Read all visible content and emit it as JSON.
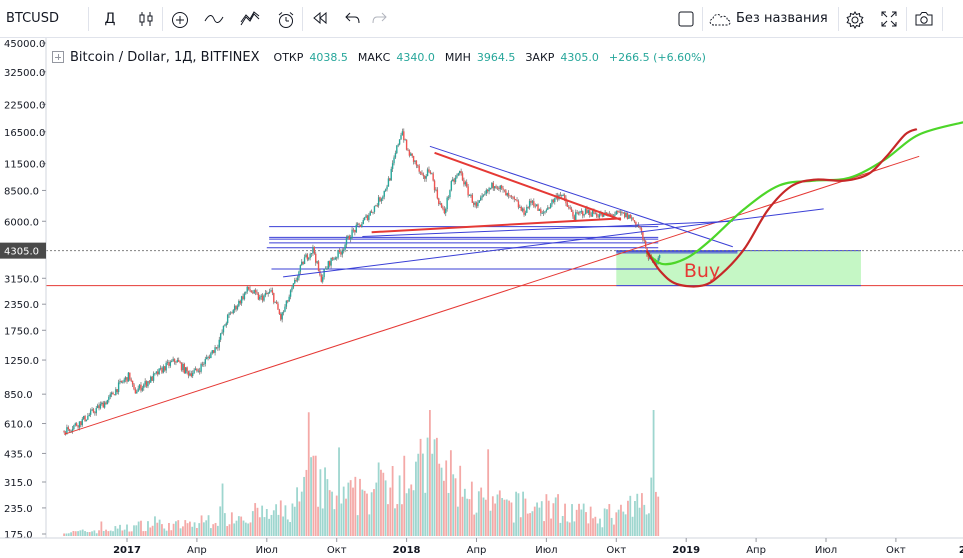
{
  "toolbar": {
    "symbol": "BTCUSD",
    "interval": "Д",
    "layout_name": "Без названия",
    "icons": [
      "candles-icon",
      "add-indicator-icon",
      "compare-icon",
      "indicators-icon",
      "alert-icon",
      "replay-icon",
      "undo-icon",
      "redo-icon",
      "checkbox-icon",
      "cloud-icon",
      "settings-icon",
      "fullscreen-icon",
      "camera-icon"
    ]
  },
  "legend": {
    "title": "Bitcoin / Dollar, 1Д, BITFINEX",
    "open_label": "ОТКР",
    "open": "4038.5",
    "high_label": "МАКС",
    "high": "4340.0",
    "low_label": "МИН",
    "low": "3964.5",
    "close_label": "ЗАКР",
    "close": "4305.0",
    "change": "+266.5 (+6.60%)"
  },
  "chart_data": {
    "type": "candlestick",
    "scale": "log",
    "symbol": "BTCUSD",
    "timeframe": "1D",
    "exchange": "BITFINEX",
    "price_axis_ticks": [
      45000,
      32500,
      22500,
      16500,
      11500,
      8500,
      6000,
      4305,
      3150,
      2350,
      1750,
      1250,
      850,
      610,
      435,
      315,
      235,
      175
    ],
    "price_axis_labels": [
      "45000.0",
      "32500.0",
      "22500.0",
      "16500.0",
      "11500.0",
      "8500.0",
      "6000.0",
      "4305.0",
      "3150.0",
      "2350.0",
      "1750.0",
      "1250.0",
      "850.0",
      "610.0",
      "435.0",
      "315.0",
      "235.0",
      "175.0"
    ],
    "current_price": 4305.0,
    "current_price_label": "4305.0",
    "time_axis": [
      {
        "label": "2017",
        "t": 0,
        "bold": true
      },
      {
        "label": "Апр",
        "t": 3
      },
      {
        "label": "Июл",
        "t": 6
      },
      {
        "label": "Окт",
        "t": 9
      },
      {
        "label": "2018",
        "t": 12,
        "bold": true
      },
      {
        "label": "Апр",
        "t": 15
      },
      {
        "label": "Июл",
        "t": 18
      },
      {
        "label": "Окт",
        "t": 21
      },
      {
        "label": "2019",
        "t": 24,
        "bold": true
      },
      {
        "label": "Апр",
        "t": 27
      },
      {
        "label": "Июл",
        "t": 30
      },
      {
        "label": "Окт",
        "t": 33
      },
      {
        "label": "20",
        "t": 36,
        "bold": true
      }
    ],
    "price_path": [
      [
        -2.7,
        560
      ],
      [
        -2.0,
        620
      ],
      [
        -1.3,
        720
      ],
      [
        -0.8,
        800
      ],
      [
        -0.3,
        950
      ],
      [
        0.1,
        1050
      ],
      [
        0.3,
        870
      ],
      [
        1.0,
        1000
      ],
      [
        1.6,
        1150
      ],
      [
        2.1,
        1250
      ],
      [
        2.6,
        1080
      ],
      [
        3.0,
        1100
      ],
      [
        3.5,
        1300
      ],
      [
        3.9,
        1500
      ],
      [
        4.3,
        2000
      ],
      [
        4.8,
        2400
      ],
      [
        5.2,
        2800
      ],
      [
        5.7,
        2500
      ],
      [
        6.2,
        2700
      ],
      [
        6.6,
        2000
      ],
      [
        7.1,
        2800
      ],
      [
        7.6,
        3900
      ],
      [
        8.0,
        4400
      ],
      [
        8.3,
        3100
      ],
      [
        8.7,
        3800
      ],
      [
        9.2,
        4300
      ],
      [
        9.6,
        5200
      ],
      [
        10.1,
        5900
      ],
      [
        10.6,
        7000
      ],
      [
        11.0,
        8200
      ],
      [
        11.3,
        10000
      ],
      [
        11.6,
        14000
      ],
      [
        11.8,
        17000
      ],
      [
        12.0,
        13500
      ],
      [
        12.4,
        11500
      ],
      [
        12.7,
        9500
      ],
      [
        13.0,
        11000
      ],
      [
        13.3,
        8000
      ],
      [
        13.6,
        6500
      ],
      [
        13.9,
        9000
      ],
      [
        14.3,
        10500
      ],
      [
        14.6,
        8500
      ],
      [
        15.0,
        7000
      ],
      [
        15.4,
        8200
      ],
      [
        15.8,
        9300
      ],
      [
        16.3,
        8000
      ],
      [
        16.7,
        7400
      ],
      [
        17.0,
        6600
      ],
      [
        17.4,
        7600
      ],
      [
        17.8,
        6400
      ],
      [
        18.2,
        7400
      ],
      [
        18.6,
        8300
      ],
      [
        18.9,
        7100
      ],
      [
        19.2,
        6300
      ],
      [
        19.6,
        6700
      ],
      [
        20.0,
        6600
      ],
      [
        20.4,
        6400
      ],
      [
        20.8,
        6450
      ],
      [
        21.2,
        6500
      ],
      [
        21.6,
        6300
      ],
      [
        22.0,
        5600
      ],
      [
        22.3,
        4200
      ],
      [
        22.6,
        3700
      ],
      [
        22.8,
        4038.5
      ],
      [
        22.9,
        4305
      ]
    ],
    "volume_path": [
      [
        -2.7,
        0.03
      ],
      [
        -1.5,
        0.05
      ],
      [
        0.0,
        0.08
      ],
      [
        1.0,
        0.12
      ],
      [
        2.0,
        0.1
      ],
      [
        3.0,
        0.12
      ],
      [
        4.0,
        0.2
      ],
      [
        5.0,
        0.22
      ],
      [
        6.0,
        0.2
      ],
      [
        7.0,
        0.25
      ],
      [
        8.0,
        0.55
      ],
      [
        9.0,
        0.35
      ],
      [
        10.0,
        0.4
      ],
      [
        11.0,
        0.5
      ],
      [
        11.8,
        0.7
      ],
      [
        12.5,
        0.6
      ],
      [
        13.0,
        0.75
      ],
      [
        14.0,
        0.55
      ],
      [
        15.0,
        0.35
      ],
      [
        16.0,
        0.3
      ],
      [
        17.0,
        0.28
      ],
      [
        18.0,
        0.3
      ],
      [
        19.0,
        0.25
      ],
      [
        20.0,
        0.18
      ],
      [
        21.0,
        0.2
      ],
      [
        22.0,
        0.3
      ],
      [
        22.6,
        0.6
      ],
      [
        22.9,
        0.35
      ]
    ],
    "volume_axis_max_label": "435.0",
    "annotations": {
      "buy_label": "Buy",
      "buy_zone": {
        "t0": 21.0,
        "t1": 31.5,
        "p_top": 4305,
        "p_bottom": 2900,
        "color": "#b7f5b7"
      },
      "support_line": {
        "price": 2900,
        "color": "#e53935"
      },
      "horizontal_levels": [
        {
          "t0": 6.1,
          "t1": 22.8,
          "price": 5650
        },
        {
          "t0": 6.1,
          "t1": 22.8,
          "price": 5000
        },
        {
          "t0": 6.1,
          "t1": 22.8,
          "price": 4900
        },
        {
          "t0": 6.1,
          "t1": 22.8,
          "price": 4700
        },
        {
          "t0": 6.0,
          "t1": 22.8,
          "price": 4450
        },
        {
          "t0": 21.0,
          "t1": 26.2,
          "price": 4270
        },
        {
          "t0": 21.0,
          "t1": 26.2,
          "price": 4200
        },
        {
          "t0": 6.2,
          "t1": 22.8,
          "price": 3500
        }
      ],
      "trend_lines": [
        {
          "t0": -2.7,
          "p0": 540,
          "t1": 34.0,
          "p1": 12500,
          "color": "#e53935",
          "width": 1
        },
        {
          "t0": 6.7,
          "p0": 3200,
          "t1": 29.9,
          "p1": 6900,
          "color": "#3a3fd6",
          "width": 1
        },
        {
          "t0": 13.0,
          "p0": 14000,
          "t1": 26.0,
          "p1": 4500,
          "color": "#3a3fd6",
          "width": 1
        },
        {
          "t0": 10.1,
          "p0": 5050,
          "t1": 26.0,
          "p1": 6000,
          "color": "#3a3fd6",
          "width": 1
        },
        {
          "t0": 13.2,
          "p0": 13000,
          "t1": 21.2,
          "p1": 6100,
          "color": "#e53935",
          "width": 2
        },
        {
          "t0": 10.5,
          "p0": 5300,
          "t1": 21.2,
          "p1": 6200,
          "color": "#e53935",
          "width": 2
        }
      ],
      "projection_green": [
        [
          22.3,
          4200
        ],
        [
          23.0,
          3700
        ],
        [
          24.0,
          3950
        ],
        [
          25.0,
          4800
        ],
        [
          26.5,
          6900
        ],
        [
          28.0,
          9000
        ],
        [
          29.5,
          9500
        ],
        [
          31.0,
          9800
        ],
        [
          32.5,
          12000
        ],
        [
          34.0,
          16000
        ],
        [
          36.0,
          18500
        ]
      ],
      "projection_red": [
        [
          22.3,
          4300
        ],
        [
          22.9,
          3400
        ],
        [
          23.6,
          2950
        ],
        [
          24.7,
          2900
        ],
        [
          25.5,
          3300
        ],
        [
          26.5,
          4400
        ],
        [
          27.5,
          6800
        ],
        [
          28.5,
          8900
        ],
        [
          29.5,
          9600
        ],
        [
          30.8,
          9500
        ],
        [
          31.8,
          10200
        ],
        [
          32.6,
          12500
        ],
        [
          33.4,
          16000
        ],
        [
          33.9,
          17000
        ]
      ]
    },
    "colors": {
      "up": "#26a69a",
      "down": "#ef5350",
      "wick": "#6b6b6b",
      "volume_up": "#9ed6cf",
      "volume_down": "#f4a9a7",
      "price_label_bg": "#4a4a4a",
      "level_line": "#3a3fd6",
      "projection_green": "#4dd629",
      "projection_red": "#c62828"
    }
  }
}
